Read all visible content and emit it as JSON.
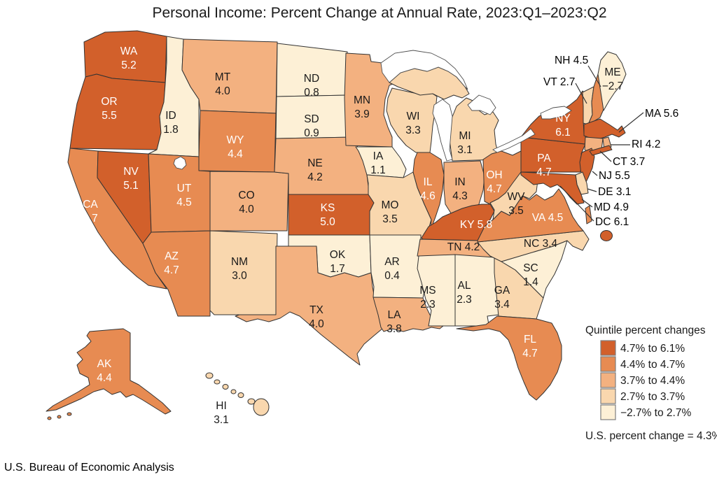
{
  "title": "Personal Income: Percent Change at Annual Rate, 2023:Q1–2023:Q2",
  "source": "U.S. Bureau of Economic Analysis",
  "legend": {
    "title": "Quintile percent changes",
    "note": "U.S. percent change = 4.3%",
    "tiers": [
      {
        "label": "4.7% to 6.1%",
        "color": "#d2602b"
      },
      {
        "label": "4.4% to 4.7%",
        "color": "#e78b52"
      },
      {
        "label": "3.7% to 4.4%",
        "color": "#f3b180"
      },
      {
        "label": "2.7% to 3.7%",
        "color": "#f9d7ae"
      },
      {
        "label": "−2.7% to 2.7%",
        "color": "#fdf0d6"
      }
    ]
  },
  "map": {
    "border_color": "#333333",
    "lake_color": "#ffffff",
    "label_light": "#ffffff",
    "label_dark": "#1a1a1a",
    "states": [
      {
        "abbr": "WA",
        "value": "5.2",
        "tier": 1
      },
      {
        "abbr": "OR",
        "value": "5.5",
        "tier": 1
      },
      {
        "abbr": "CA",
        "value": "4.7",
        "tier": 2
      },
      {
        "abbr": "NV",
        "value": "5.1",
        "tier": 1
      },
      {
        "abbr": "ID",
        "value": "1.8",
        "tier": 5
      },
      {
        "abbr": "MT",
        "value": "4.0",
        "tier": 3
      },
      {
        "abbr": "WY",
        "value": "4.4",
        "tier": 2
      },
      {
        "abbr": "UT",
        "value": "4.5",
        "tier": 2
      },
      {
        "abbr": "CO",
        "value": "4.0",
        "tier": 3
      },
      {
        "abbr": "AZ",
        "value": "4.7",
        "tier": 2
      },
      {
        "abbr": "NM",
        "value": "3.0",
        "tier": 4
      },
      {
        "abbr": "ND",
        "value": "0.8",
        "tier": 5
      },
      {
        "abbr": "SD",
        "value": "0.9",
        "tier": 5
      },
      {
        "abbr": "NE",
        "value": "4.2",
        "tier": 3
      },
      {
        "abbr": "KS",
        "value": "5.0",
        "tier": 1
      },
      {
        "abbr": "OK",
        "value": "1.7",
        "tier": 5
      },
      {
        "abbr": "TX",
        "value": "4.0",
        "tier": 3
      },
      {
        "abbr": "MN",
        "value": "3.9",
        "tier": 3
      },
      {
        "abbr": "IA",
        "value": "1.1",
        "tier": 5
      },
      {
        "abbr": "MO",
        "value": "3.5",
        "tier": 4
      },
      {
        "abbr": "AR",
        "value": "0.4",
        "tier": 5
      },
      {
        "abbr": "LA",
        "value": "3.8",
        "tier": 3
      },
      {
        "abbr": "WI",
        "value": "3.3",
        "tier": 4
      },
      {
        "abbr": "IL",
        "value": "4.6",
        "tier": 2
      },
      {
        "abbr": "MI",
        "value": "3.1",
        "tier": 4
      },
      {
        "abbr": "IN",
        "value": "4.3",
        "tier": 3
      },
      {
        "abbr": "OH",
        "value": "4.7",
        "tier": 2
      },
      {
        "abbr": "KY",
        "value": "5.8",
        "tier": 1
      },
      {
        "abbr": "TN",
        "value": "4.2",
        "tier": 3
      },
      {
        "abbr": "MS",
        "value": "2.3",
        "tier": 5
      },
      {
        "abbr": "AL",
        "value": "2.3",
        "tier": 5
      },
      {
        "abbr": "GA",
        "value": "3.4",
        "tier": 4
      },
      {
        "abbr": "FL",
        "value": "4.7",
        "tier": 2
      },
      {
        "abbr": "SC",
        "value": "1.4",
        "tier": 5
      },
      {
        "abbr": "NC",
        "value": "3.4",
        "tier": 4
      },
      {
        "abbr": "VA",
        "value": "4.5",
        "tier": 2
      },
      {
        "abbr": "WV",
        "value": "3.5",
        "tier": 4
      },
      {
        "abbr": "KY2",
        "value": "",
        "tier": 1
      },
      {
        "abbr": "PA",
        "value": "4.7",
        "tier": 1
      },
      {
        "abbr": "NY",
        "value": "6.1",
        "tier": 1
      },
      {
        "abbr": "VT",
        "value": "2.7",
        "tier": 4
      },
      {
        "abbr": "NH",
        "value": "4.5",
        "tier": 2
      },
      {
        "abbr": "ME",
        "value": "−2.7",
        "tier": 5
      },
      {
        "abbr": "MA",
        "value": "5.6",
        "tier": 1
      },
      {
        "abbr": "RI",
        "value": "4.2",
        "tier": 3
      },
      {
        "abbr": "CT",
        "value": "3.7",
        "tier": 3
      },
      {
        "abbr": "NJ",
        "value": "5.5",
        "tier": 1
      },
      {
        "abbr": "DE",
        "value": "3.1",
        "tier": 4
      },
      {
        "abbr": "MD",
        "value": "4.9",
        "tier": 1
      },
      {
        "abbr": "DC",
        "value": "6.1",
        "tier": 1
      },
      {
        "abbr": "AK",
        "value": "4.4",
        "tier": 2
      },
      {
        "abbr": "HI",
        "value": "3.1",
        "tier": 4
      }
    ]
  }
}
